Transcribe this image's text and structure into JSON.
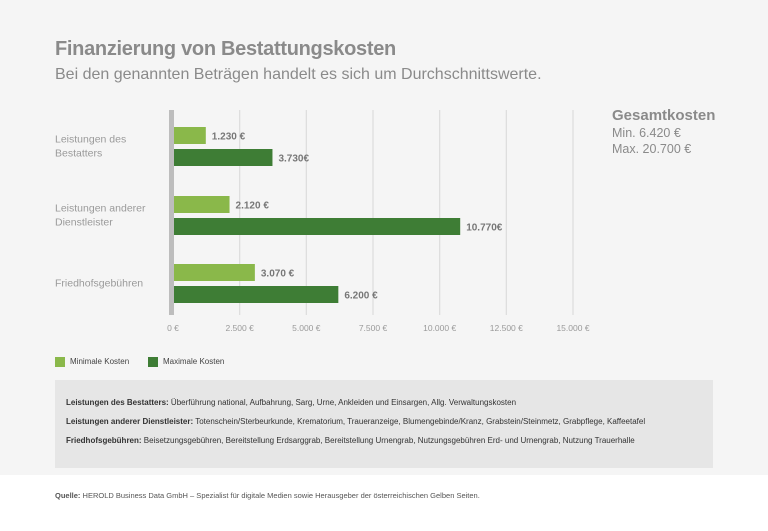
{
  "title": "Finanzierung von Bestattungskosten",
  "subtitle": "Bei den genannten Beträgen handelt es sich um Durchschnittswerte.",
  "summary": {
    "heading": "Gesamtkosten",
    "min": "Min. 6.420 €",
    "max": "Max. 20.700 €"
  },
  "colors": {
    "min": "#8ab84a",
    "max": "#3e7d35",
    "axis": "#bdbdbd",
    "grid": "#dcdcdc"
  },
  "chart_data": {
    "type": "bar",
    "orientation": "horizontal",
    "categories": [
      [
        "Leistungen des",
        "Bestatters"
      ],
      [
        "Leistungen anderer",
        "Dienstleister"
      ],
      [
        "Friedhofsgebühren"
      ]
    ],
    "series": [
      {
        "name": "Minimale Kosten",
        "values": [
          1230,
          2120,
          3070
        ],
        "labels": [
          "1.230 €",
          "2.120 €",
          "3.070 €"
        ]
      },
      {
        "name": "Maximale Kosten",
        "values": [
          3730,
          10770,
          6200
        ],
        "labels": [
          "3.730€",
          "10.770€",
          "6.200 €"
        ]
      }
    ],
    "xlim": [
      0,
      15000
    ],
    "ticks": [
      0,
      2500,
      5000,
      7500,
      10000,
      12500,
      15000
    ],
    "tick_labels": [
      "0 €",
      "2.500 €",
      "5.000 €",
      "7.500 €",
      "10.000 €",
      "12.500 €",
      "15.000 €"
    ],
    "grid": true,
    "legend_position": "bottom-left"
  },
  "legend": {
    "min_label": "Minimale Kosten",
    "max_label": "Maximale Kosten"
  },
  "definitions": [
    {
      "term": "Leistungen des Bestatters:",
      "text": " Überführung national, Aufbahrung, Sarg, Urne, Ankleiden und Einsargen, Allg. Verwaltungskosten"
    },
    {
      "term": "Leistungen anderer Dienstleister:",
      "text": " Totenschein/Sterbeurkunde, Krematorium, Traueranzeige, Blumengebinde/Kranz, Grabstein/Steinmetz, Grabpflege, Kaffeetafel"
    },
    {
      "term": "Friedhofsgebühren:",
      "text": " Beisetzungsgebühren, Bereitstellung Erdsarggrab, Bereitstellung Urnengrab, Nutzungsgebühren Erd- und Urnengrab, Nutzung Trauerhalle"
    }
  ],
  "source": {
    "label": "Quelle:",
    "text": " HEROLD Business Data GmbH – Spezialist für digitale Medien sowie Herausgeber der österreichischen Gelben Seiten."
  }
}
